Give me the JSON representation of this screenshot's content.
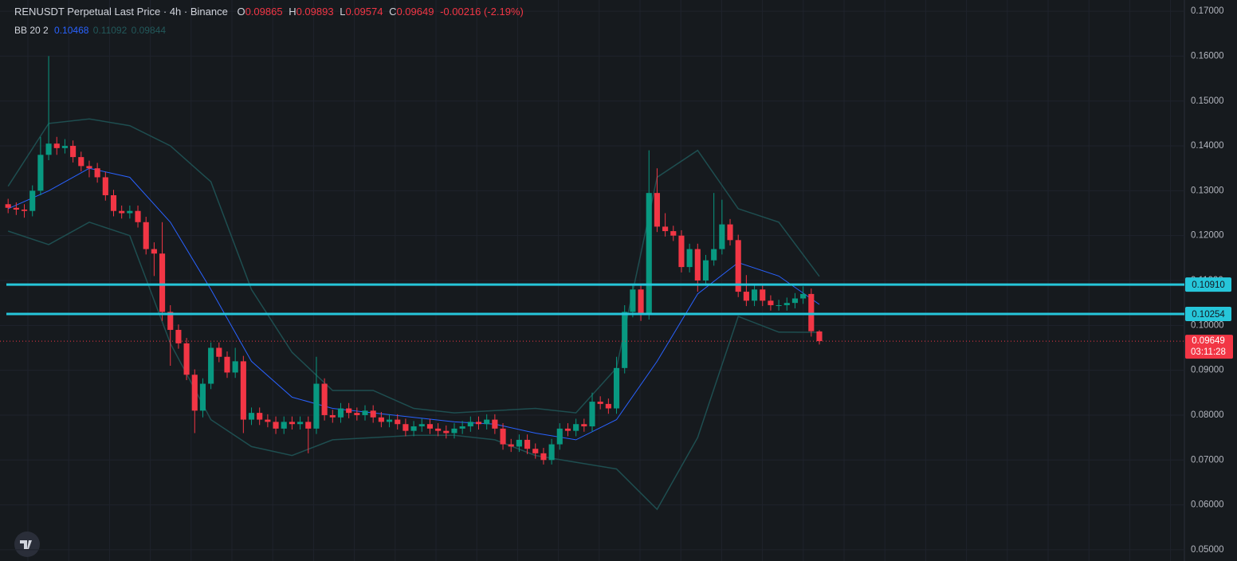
{
  "chart_data": {
    "type": "candlestick",
    "title": "RENUSDT Perpetual Last Price · 4h · Binance",
    "ohlc_labels": [
      "O",
      "H",
      "L",
      "C"
    ],
    "change": "-0.00216 (-2.19%)",
    "up_color": "#089981",
    "down_color": "#f23645",
    "open": [
      0.127,
      0.1262,
      0.1258,
      0.1255,
      0.13,
      0.138,
      0.1405,
      0.1395,
      0.14,
      0.1375,
      0.1355,
      0.135,
      0.133,
      0.129,
      0.1255,
      0.125,
      0.1255,
      0.123,
      0.117,
      0.116,
      0.103,
      0.099,
      0.096,
      0.089,
      0.081,
      0.087,
      0.095,
      0.093,
      0.0895,
      0.092,
      0.079,
      0.0805,
      0.079,
      0.0785,
      0.077,
      0.0785,
      0.078,
      0.0785,
      0.077,
      0.087,
      0.08,
      0.0795,
      0.0815,
      0.0805,
      0.08,
      0.081,
      0.0795,
      0.0785,
      0.079,
      0.078,
      0.0765,
      0.0775,
      0.078,
      0.077,
      0.0765,
      0.076,
      0.077,
      0.0775,
      0.0785,
      0.078,
      0.079,
      0.077,
      0.0735,
      0.073,
      0.0745,
      0.0725,
      0.0715,
      0.07,
      0.0735,
      0.077,
      0.0765,
      0.078,
      0.0775,
      0.083,
      0.0825,
      0.0815,
      0.0905,
      0.103,
      0.108,
      0.1025,
      0.1295,
      0.122,
      0.121,
      0.12,
      0.113,
      0.117,
      0.11,
      0.1145,
      0.117,
      0.1225,
      0.119,
      0.1075,
      0.1055,
      0.108,
      0.1055,
      0.1045,
      0.1045,
      0.105,
      0.106,
      0.107,
      0.09865
    ],
    "high": [
      0.1282,
      0.1274,
      0.127,
      0.1312,
      0.142,
      0.16,
      0.142,
      0.1415,
      0.1412,
      0.1387,
      0.1367,
      0.1362,
      0.1342,
      0.1302,
      0.1267,
      0.1267,
      0.1267,
      0.1242,
      0.1185,
      0.123,
      0.1045,
      0.1002,
      0.0972,
      0.0902,
      0.0882,
      0.0962,
      0.0962,
      0.0942,
      0.095,
      0.0932,
      0.0817,
      0.0817,
      0.0802,
      0.0797,
      0.0797,
      0.0797,
      0.0797,
      0.0797,
      0.093,
      0.0882,
      0.0812,
      0.0827,
      0.0827,
      0.0817,
      0.0822,
      0.0822,
      0.0807,
      0.0802,
      0.0802,
      0.0792,
      0.0787,
      0.0792,
      0.0792,
      0.0782,
      0.0777,
      0.0782,
      0.0787,
      0.0797,
      0.0797,
      0.0802,
      0.0802,
      0.0782,
      0.0747,
      0.0757,
      0.0757,
      0.0737,
      0.0727,
      0.0747,
      0.0782,
      0.0782,
      0.0792,
      0.0792,
      0.085,
      0.0842,
      0.0837,
      0.093,
      0.1045,
      0.1092,
      0.1092,
      0.139,
      0.135,
      0.125,
      0.1222,
      0.1212,
      0.1182,
      0.1182,
      0.1157,
      0.1295,
      0.128,
      0.1237,
      0.1202,
      0.1112,
      0.1092,
      0.1092,
      0.1067,
      0.1057,
      0.1062,
      0.1072,
      0.1087,
      0.1082,
      0.09893
    ],
    "low": [
      0.125,
      0.1246,
      0.124,
      0.1243,
      0.129,
      0.1368,
      0.138,
      0.1383,
      0.1363,
      0.1343,
      0.133,
      0.1318,
      0.1278,
      0.1243,
      0.1238,
      0.1238,
      0.1218,
      0.1158,
      0.111,
      0.101,
      0.091,
      0.0948,
      0.0878,
      0.076,
      0.0795,
      0.0858,
      0.0918,
      0.0883,
      0.0883,
      0.076,
      0.0778,
      0.0778,
      0.0773,
      0.0758,
      0.0758,
      0.0768,
      0.0768,
      0.0715,
      0.0758,
      0.0788,
      0.0783,
      0.0783,
      0.0793,
      0.0788,
      0.0788,
      0.0783,
      0.0773,
      0.0773,
      0.0768,
      0.0753,
      0.0753,
      0.0763,
      0.0758,
      0.0753,
      0.0748,
      0.0748,
      0.0758,
      0.0763,
      0.0768,
      0.0768,
      0.0758,
      0.0723,
      0.0718,
      0.0718,
      0.0713,
      0.0703,
      0.069,
      0.069,
      0.0723,
      0.0753,
      0.0753,
      0.0763,
      0.0763,
      0.0813,
      0.0803,
      0.0803,
      0.0893,
      0.1018,
      0.101,
      0.1013,
      0.1208,
      0.1198,
      0.1188,
      0.1118,
      0.1118,
      0.1075,
      0.1088,
      0.1133,
      0.1158,
      0.1178,
      0.1063,
      0.1043,
      0.1043,
      0.1043,
      0.1033,
      0.1033,
      0.1033,
      0.1038,
      0.1048,
      0.0975,
      0.09574
    ],
    "close": [
      0.1262,
      0.1258,
      0.1255,
      0.13,
      0.138,
      0.1405,
      0.1395,
      0.14,
      0.1375,
      0.1355,
      0.135,
      0.133,
      0.129,
      0.1255,
      0.125,
      0.1255,
      0.123,
      0.117,
      0.116,
      0.103,
      0.099,
      0.096,
      0.089,
      0.081,
      0.087,
      0.095,
      0.093,
      0.0895,
      0.092,
      0.079,
      0.0805,
      0.079,
      0.0785,
      0.077,
      0.0785,
      0.078,
      0.0785,
      0.077,
      0.087,
      0.08,
      0.0795,
      0.0815,
      0.0805,
      0.08,
      0.081,
      0.0795,
      0.0785,
      0.079,
      0.078,
      0.0765,
      0.0775,
      0.078,
      0.077,
      0.0765,
      0.076,
      0.077,
      0.0775,
      0.0785,
      0.078,
      0.079,
      0.077,
      0.0735,
      0.073,
      0.0745,
      0.0725,
      0.0715,
      0.07,
      0.0735,
      0.077,
      0.0765,
      0.078,
      0.0775,
      0.083,
      0.0825,
      0.0815,
      0.0905,
      0.103,
      0.108,
      0.1025,
      0.1295,
      0.122,
      0.121,
      0.12,
      0.113,
      0.117,
      0.11,
      0.1145,
      0.117,
      0.1225,
      0.119,
      0.1075,
      0.1055,
      0.108,
      0.1055,
      0.1045,
      0.1045,
      0.105,
      0.106,
      0.107,
      0.0987,
      0.09649
    ],
    "xlim": [
      -1,
      145
    ],
    "ylim": [
      0.0475,
      0.1725
    ],
    "yticks": [
      {
        "value": 0.05,
        "label": "0.05000"
      },
      {
        "value": 0.06,
        "label": "0.06000"
      },
      {
        "value": 0.07,
        "label": "0.07000"
      },
      {
        "value": 0.08,
        "label": "0.08000"
      },
      {
        "value": 0.09,
        "label": "0.09000"
      },
      {
        "value": 0.1,
        "label": "0.10000"
      },
      {
        "value": 0.11,
        "label": "0.11000"
      },
      {
        "value": 0.12,
        "label": "0.12000"
      },
      {
        "value": 0.13,
        "label": "0.13000"
      },
      {
        "value": 0.14,
        "label": "0.14000"
      },
      {
        "value": 0.15,
        "label": "0.15000"
      },
      {
        "value": 0.16,
        "label": "0.16000"
      },
      {
        "value": 0.17,
        "label": "0.17000"
      }
    ],
    "grid": true,
    "indicator": {
      "name": "BB 20 2",
      "x": [
        0,
        5,
        10,
        15,
        20,
        25,
        30,
        35,
        40,
        45,
        50,
        55,
        60,
        65,
        70,
        75,
        80,
        85,
        90,
        95,
        100
      ],
      "series": [
        {
          "color": "#2962ff",
          "values": [
            0.126,
            0.13,
            0.135,
            0.133,
            0.123,
            0.108,
            0.092,
            0.084,
            0.0815,
            0.0805,
            0.0795,
            0.0785,
            0.078,
            0.076,
            0.0745,
            0.079,
            0.092,
            0.107,
            0.114,
            0.111,
            0.10468
          ]
        },
        {
          "color": "#1e4e50",
          "values": [
            0.131,
            0.145,
            0.146,
            0.1445,
            0.14,
            0.132,
            0.108,
            0.094,
            0.0855,
            0.0855,
            0.0815,
            0.0805,
            0.081,
            0.0815,
            0.0805,
            0.0905,
            0.133,
            0.139,
            0.126,
            0.123,
            0.11092
          ]
        },
        {
          "color": "#1e4e50",
          "values": [
            0.121,
            0.118,
            0.123,
            0.12,
            0.096,
            0.079,
            0.073,
            0.071,
            0.0745,
            0.075,
            0.0755,
            0.0755,
            0.0745,
            0.071,
            0.0695,
            0.068,
            0.059,
            0.075,
            0.102,
            0.0985,
            0.09844
          ]
        }
      ]
    },
    "price_lines": [
      {
        "value": 0.1091,
        "label": "0.10910",
        "color": "#26c6da"
      },
      {
        "value": 0.10254,
        "label": "0.10254",
        "color": "#26c6da"
      }
    ],
    "countdown": "03:11:28"
  }
}
